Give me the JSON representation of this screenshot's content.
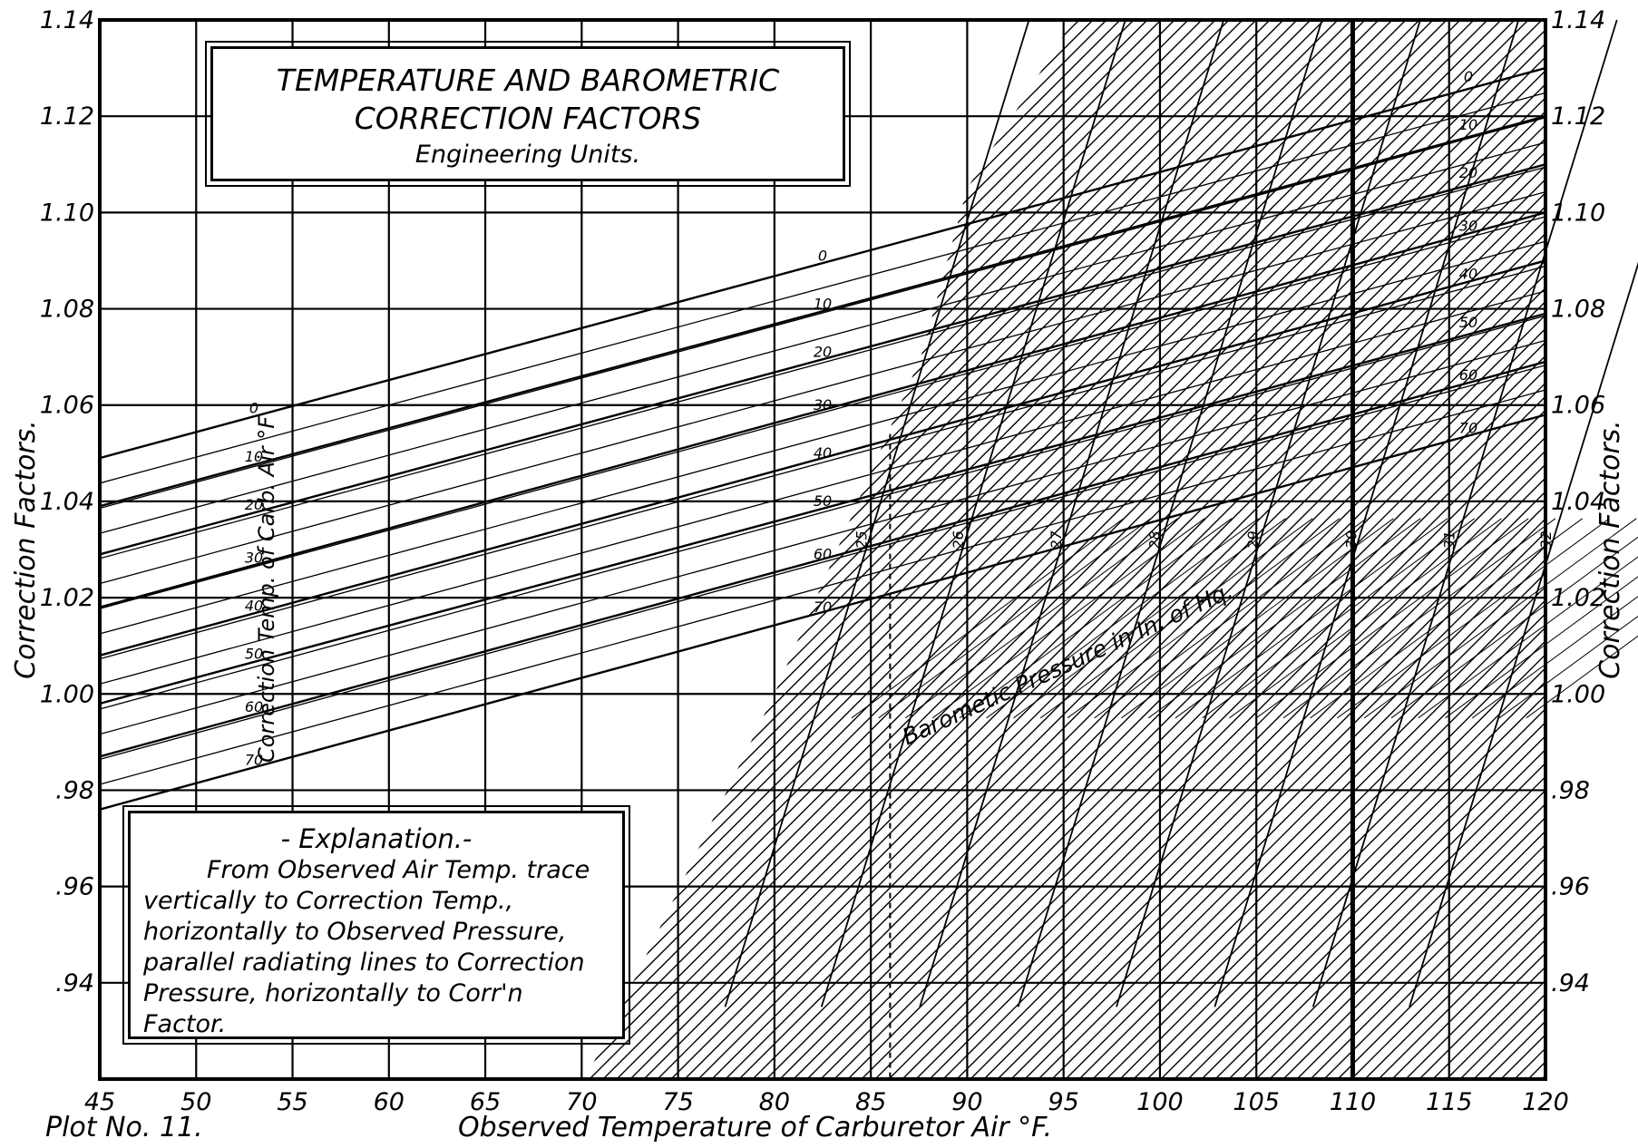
{
  "chart_data": {
    "type": "line",
    "title": "TEMPERATURE AND BAROMETRIC CORRECTION FACTORS",
    "subtitle": "Engineering Units.",
    "xlabel": "Observed Temperature of Carburetor Air °F.",
    "ylabel": "Correction Factors.",
    "ylabel_right": "Correction Factors.",
    "xlim": [
      45,
      120
    ],
    "ylim": [
      0.92,
      1.14
    ],
    "grid": true,
    "x_ticks": [
      "45",
      "50",
      "55",
      "60",
      "65",
      "70",
      "75",
      "80",
      "85",
      "90",
      "95",
      "100",
      "105",
      "110",
      "115",
      "120"
    ],
    "y_ticks": [
      ".94",
      ".96",
      ".98",
      "1.00",
      "1.02",
      "1.04",
      "1.06",
      "1.08",
      "1.10",
      "1.12",
      "1.14"
    ],
    "temperature_family": {
      "label": "Correction Temp. of Carb. Air °F",
      "labels": [
        "0",
        "10",
        "20",
        "30",
        "40",
        "50",
        "60",
        "70"
      ],
      "lines": [
        {
          "name": "0",
          "points": [
            [
              45,
              1.049
            ],
            [
              120,
              1.13
            ]
          ]
        },
        {
          "name": "10",
          "points": [
            [
              45,
              1.039
            ],
            [
              120,
              1.12
            ]
          ]
        },
        {
          "name": "20",
          "points": [
            [
              45,
              1.029
            ],
            [
              120,
              1.11
            ]
          ]
        },
        {
          "name": "30",
          "points": [
            [
              45,
              1.018
            ],
            [
              120,
              1.1
            ]
          ]
        },
        {
          "name": "40",
          "points": [
            [
              45,
              1.008
            ],
            [
              120,
              1.09
            ]
          ]
        },
        {
          "name": "50",
          "points": [
            [
              45,
              0.998
            ],
            [
              120,
              1.079
            ]
          ]
        },
        {
          "name": "60",
          "points": [
            [
              45,
              0.987
            ],
            [
              120,
              1.069
            ]
          ]
        },
        {
          "name": "70",
          "points": [
            [
              45,
              0.976
            ],
            [
              120,
              1.058
            ]
          ]
        }
      ]
    },
    "pressure_family": {
      "label": "Barometic Pressure in In. of Hq.",
      "labels": [
        "25",
        "26",
        "27",
        "28",
        "29",
        "30",
        "31",
        "32"
      ],
      "lines": [
        {
          "name": "25",
          "x": 84.5
        },
        {
          "name": "26",
          "x": 89.5
        },
        {
          "name": "27",
          "x": 94.6
        },
        {
          "name": "28",
          "x": 99.7
        },
        {
          "name": "29",
          "x": 104.8
        },
        {
          "name": "30",
          "x": 109.9
        },
        {
          "name": "31",
          "x": 115.0
        },
        {
          "name": "32",
          "x": 120.0
        }
      ]
    },
    "reference_lines": [
      {
        "type": "vertical",
        "x": 86,
        "style": "dashed"
      },
      {
        "type": "vertical",
        "x": 110,
        "style": "solid-heavy"
      }
    ]
  },
  "explanation": {
    "heading": "- Explanation.-",
    "body": "From Observed Air Temp. trace vertically to Correction Temp., horizontally to Observed Pressure, parallel radiating lines to Correction Pressure, horizontally to Corr'n Factor."
  },
  "footer": {
    "plot_number": "Plot No. 11."
  }
}
